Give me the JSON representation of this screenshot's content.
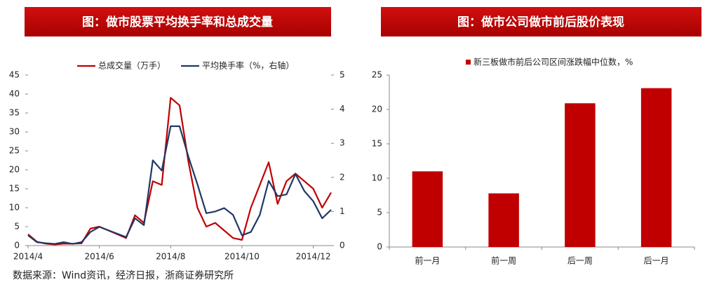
{
  "chart_data": [
    {
      "type": "line",
      "title": "图：做市股票平均换手率和总成交量",
      "categories": [
        "2014/4",
        null,
        null,
        null,
        null,
        null,
        null,
        null,
        "2014/6",
        null,
        null,
        null,
        null,
        null,
        null,
        null,
        "2014/8",
        null,
        null,
        null,
        null,
        null,
        null,
        null,
        "2014/10",
        null,
        null,
        null,
        null,
        null,
        null,
        null,
        "2014/12",
        null,
        null
      ],
      "series": [
        {
          "name": "总成交量（万手）",
          "color": "#c00000",
          "axis": "y",
          "values": [
            3,
            1,
            0.5,
            0.3,
            0.5,
            0.5,
            0.6,
            4.5,
            5,
            4,
            3,
            2,
            8,
            6,
            17,
            16,
            39,
            37,
            22,
            10,
            5,
            6,
            4,
            2,
            1.5,
            10,
            16,
            22,
            11,
            17,
            19,
            17,
            15,
            10,
            14
          ]
        },
        {
          "name": "平均换手率（%，右轴）",
          "color": "#1f3864",
          "axis": "y2",
          "values": [
            0.3,
            0.1,
            0.07,
            0.05,
            0.1,
            0.05,
            0.1,
            0.4,
            0.55,
            0.45,
            0.35,
            0.25,
            0.8,
            0.6,
            2.5,
            2.2,
            3.5,
            3.5,
            2.6,
            1.8,
            0.95,
            1.0,
            1.1,
            0.9,
            0.3,
            0.4,
            0.9,
            1.9,
            1.45,
            1.5,
            2.1,
            1.6,
            1.3,
            0.8,
            1.05
          ]
        }
      ],
      "ylim": [
        0,
        45
      ],
      "yticks": [
        0,
        5,
        10,
        15,
        20,
        25,
        30,
        35,
        40,
        45
      ],
      "y2lim": [
        0,
        5
      ],
      "y2ticks": [
        0,
        1,
        2,
        3,
        4,
        5
      ],
      "legend": "top"
    },
    {
      "type": "bar",
      "title": "图：做市公司做市前后股价表现",
      "categories": [
        "前一月",
        "前一周",
        "后一周",
        "后一月"
      ],
      "series": [
        {
          "name": "新三板做市前后公司区间涨跌幅中位数，%",
          "color": "#c00000",
          "values": [
            11,
            7.8,
            20.9,
            23.1
          ]
        }
      ],
      "ylim": [
        0,
        25
      ],
      "yticks": [
        0,
        5,
        10,
        15,
        20,
        25
      ],
      "legend": "top"
    }
  ],
  "source": "数据来源：Wind资讯，经济日报，浙商证券研究所"
}
